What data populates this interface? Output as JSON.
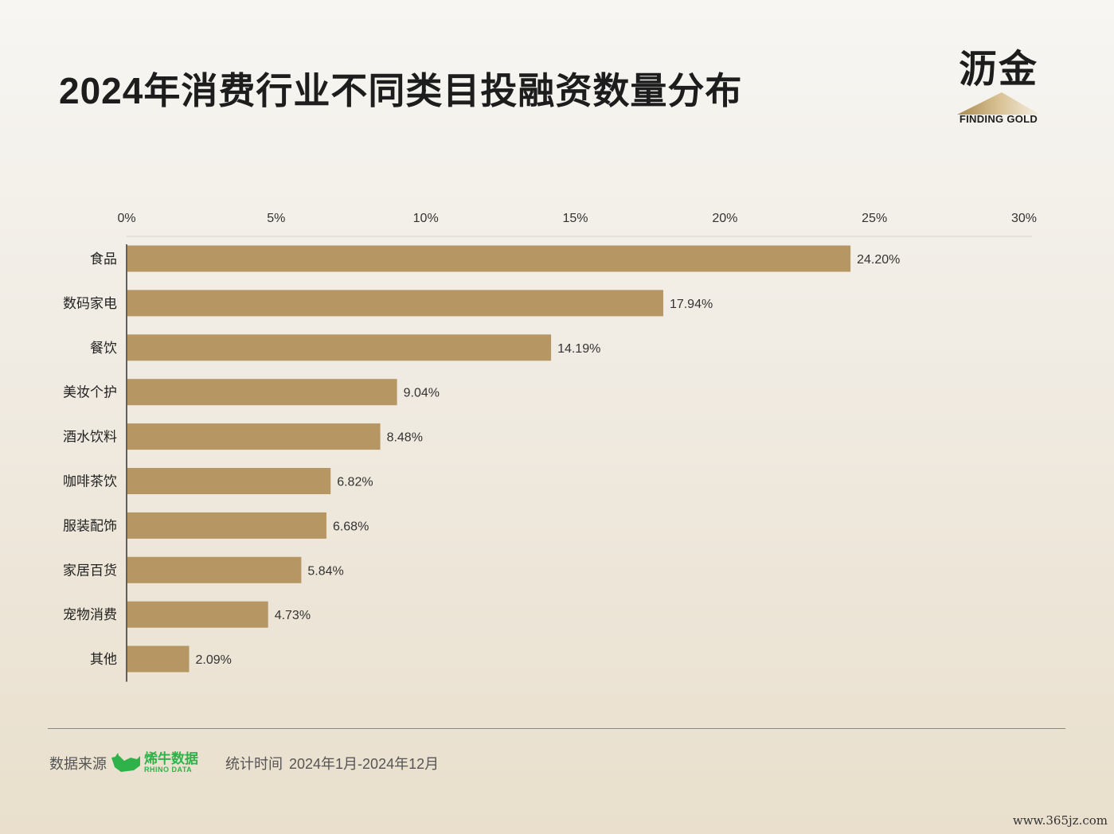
{
  "title": "2024年消费行业不同类目投融资数量分布",
  "logo": {
    "cn": "沥金",
    "en": "FINDING GOLD"
  },
  "chart_data": {
    "type": "bar",
    "orientation": "horizontal",
    "categories": [
      "食品",
      "数码家电",
      "餐饮",
      "美妆个护",
      "酒水饮料",
      "咖啡茶饮",
      "服装配饰",
      "家居百货",
      "宠物消费",
      "其他"
    ],
    "values": [
      24.2,
      17.94,
      14.19,
      9.04,
      8.48,
      6.82,
      6.68,
      5.84,
      4.73,
      2.09
    ],
    "value_labels": [
      "24.20%",
      "17.94%",
      "14.19%",
      "9.04%",
      "8.48%",
      "6.82%",
      "6.68%",
      "5.84%",
      "4.73%",
      "2.09%"
    ],
    "x_ticks": [
      "0%",
      "5%",
      "10%",
      "15%",
      "20%",
      "25%",
      "30%"
    ],
    "xlim": [
      0,
      30
    ],
    "x_axis_position": "top",
    "grid": false,
    "bar_color": "#b69662"
  },
  "footer": {
    "source_label": "数据来源",
    "source_cn": "烯牛数据",
    "source_en": "RHINO DATA",
    "period_label": "统计时间",
    "period": "2024年1月-2024年12月"
  },
  "watermark": "www.365jz.com",
  "colors": {
    "bar": "#b69662",
    "brand_green": "#2fb24a"
  }
}
